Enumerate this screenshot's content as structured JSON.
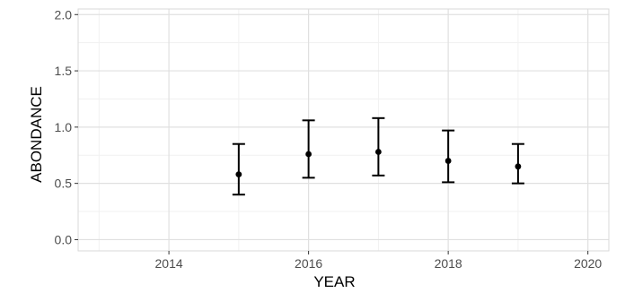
{
  "chart_data": {
    "type": "scatter",
    "title": "",
    "xlabel": "YEAR",
    "ylabel": "ABONDANCE",
    "xlim": [
      2012.7,
      2020.3
    ],
    "ylim": [
      -0.1,
      2.05
    ],
    "x_ticks": [
      2014,
      2016,
      2018,
      2020
    ],
    "x_tick_labels": [
      "2014",
      "2016",
      "2018",
      "2020"
    ],
    "y_ticks": [
      0.0,
      0.5,
      1.0,
      1.5,
      2.0
    ],
    "y_tick_labels": [
      "0.0",
      "0.5",
      "1.0",
      "1.5",
      "2.0"
    ],
    "grid": true,
    "series": [
      {
        "x": [
          2015,
          2016,
          2017,
          2018,
          2019
        ],
        "y": [
          0.58,
          0.76,
          0.78,
          0.7,
          0.65
        ],
        "error_low": [
          0.4,
          0.55,
          0.57,
          0.51,
          0.5
        ],
        "error_high": [
          0.85,
          1.06,
          1.08,
          0.97,
          0.85
        ]
      }
    ],
    "colors": {
      "point": "#000000",
      "errorbar": "#000000",
      "grid_major": "#e0e0e0",
      "grid_minor": "#f1f1f1",
      "panel_border": "#d9d9d9"
    }
  }
}
